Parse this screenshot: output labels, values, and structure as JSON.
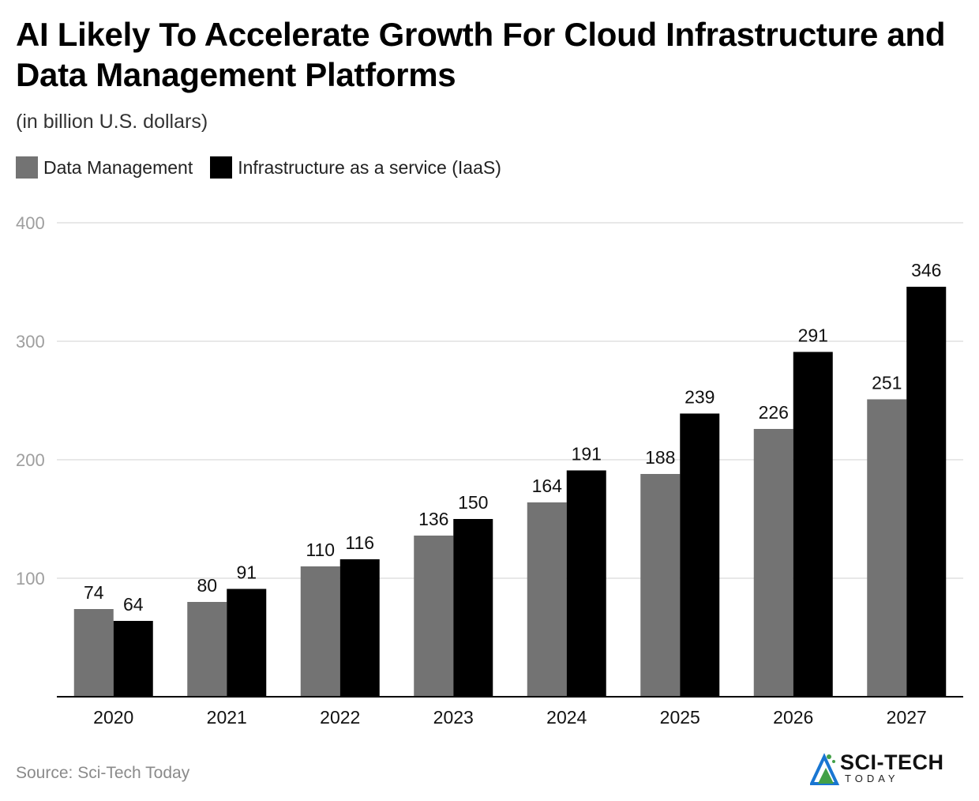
{
  "chart_data": {
    "type": "bar",
    "title": "AI Likely To Accelerate Growth For Cloud Infrastructure and Data Management Platforms",
    "subtitle": "(in billion U.S. dollars)",
    "categories": [
      "2020",
      "2021",
      "2022",
      "2023",
      "2024",
      "2025",
      "2026",
      "2027"
    ],
    "series": [
      {
        "name": "Data Management",
        "color": "#737373",
        "values": [
          74,
          80,
          110,
          136,
          164,
          188,
          226,
          251
        ]
      },
      {
        "name": "Infrastructure as a service (IaaS)",
        "color": "#000000",
        "values": [
          64,
          91,
          116,
          150,
          191,
          239,
          291,
          346
        ]
      }
    ],
    "yticks": [
      "100",
      "200",
      "300",
      "400"
    ],
    "ylim": [
      0,
      400
    ],
    "grid": true,
    "legend_position": "top-left",
    "xlabel": "",
    "ylabel": ""
  },
  "footer": {
    "source": "Source: Sci-Tech Today",
    "brand_name": "SCI-TECH",
    "brand_tagline": "TODAY"
  },
  "colors": {
    "gridline": "#e0e0e0",
    "axis": "#000000",
    "tick_label": "#9e9e9e",
    "brand_green": "#43a047",
    "brand_blue": "#1976d2"
  }
}
